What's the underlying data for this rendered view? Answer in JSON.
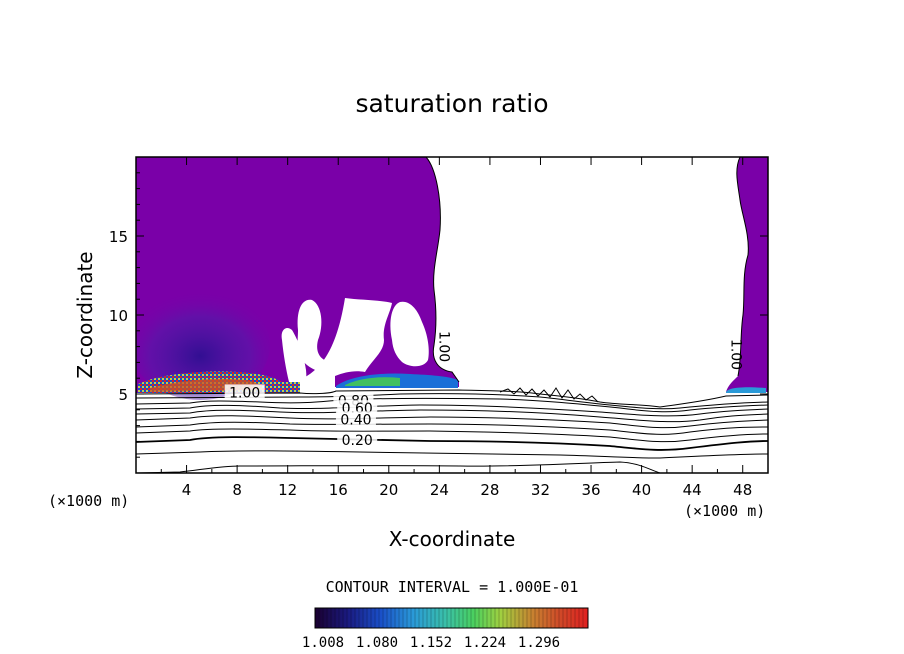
{
  "chart_data": {
    "type": "heatmap",
    "title": "saturation ratio",
    "xlabel": "X-coordinate",
    "ylabel": "Z-coordinate",
    "x_unit": "(×1000 m)",
    "x_unit_right": "(×1000 m)",
    "xlim": [
      0,
      50
    ],
    "ylim": [
      0,
      20
    ],
    "x_ticks": [
      4,
      8,
      12,
      16,
      20,
      24,
      28,
      32,
      36,
      40,
      44,
      48
    ],
    "y_ticks": [
      5,
      10,
      15
    ],
    "contour_labels": [
      {
        "text": "1.00",
        "x": 8.6,
        "z": 5.1
      },
      {
        "text": "0.80",
        "x": 17.2,
        "z": 4.6
      },
      {
        "text": "0.60",
        "x": 17.5,
        "z": 4.1
      },
      {
        "text": "0.40",
        "x": 17.4,
        "z": 3.4
      },
      {
        "text": "0.20",
        "x": 17.5,
        "z": 2.1
      },
      {
        "text": "1.00",
        "x": 24.4,
        "z": 8.0,
        "rotated": true
      },
      {
        "text": "1.00",
        "x": 47.5,
        "z": 7.5,
        "rotated": true
      }
    ],
    "contour_interval_text": "CONTOUR INTERVAL = 1.000E-01",
    "colorbar": {
      "ticks": [
        "1.008",
        "1.080",
        "1.152",
        "1.224",
        "1.296"
      ],
      "colors": [
        "#1a0030",
        "#1a1a80",
        "#1a4fc8",
        "#2a9ad8",
        "#3ac0a8",
        "#4ad060",
        "#a0d040",
        "#c88030",
        "#d04828",
        "#e02020"
      ]
    },
    "supersaturated_region_color": "#7a00a8"
  }
}
